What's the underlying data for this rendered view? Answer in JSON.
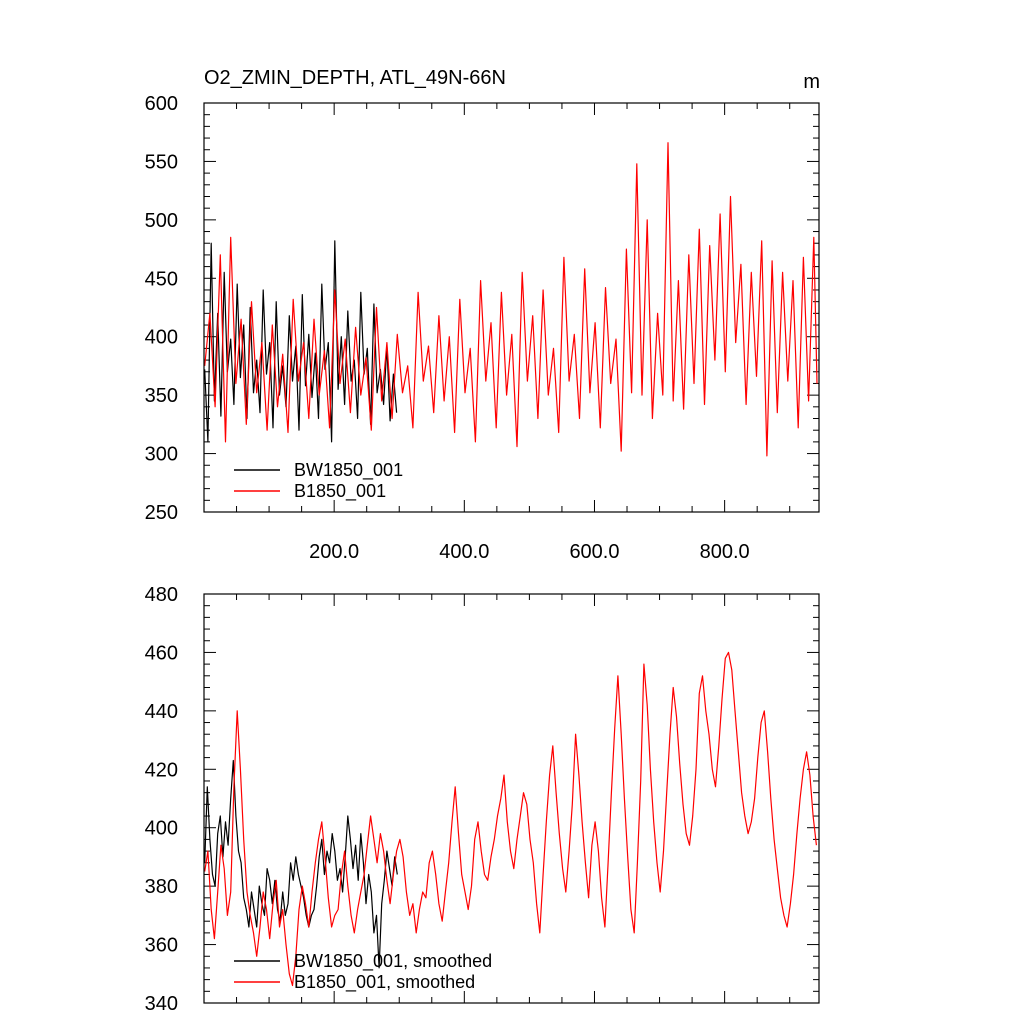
{
  "chart_data": [
    {
      "type": "line",
      "title": "O2_ZMIN_DEPTH, ATL_49N-66N",
      "units": "m",
      "xlabel": "",
      "ylabel": "",
      "xlim": [
        0,
        945
      ],
      "ylim": [
        250,
        600
      ],
      "x_ticks": [
        200,
        400,
        600,
        800
      ],
      "x_tick_labels": [
        "200.0",
        "400.0",
        "600.0",
        "800.0"
      ],
      "y_ticks": [
        250,
        300,
        350,
        400,
        450,
        500,
        550,
        600
      ],
      "y_tick_labels": [
        "250",
        "300",
        "350",
        "400",
        "450",
        "500",
        "550",
        "600"
      ],
      "legend_position": "bottom-left",
      "series": [
        {
          "name": "BW1850_001",
          "color": "#000000",
          "x": [
            1,
            6,
            11,
            16,
            21,
            26,
            31,
            36,
            41,
            46,
            51,
            56,
            61,
            66,
            71,
            76,
            81,
            86,
            91,
            96,
            101,
            106,
            111,
            116,
            121,
            126,
            131,
            136,
            141,
            146,
            151,
            156,
            161,
            166,
            171,
            176,
            181,
            186,
            191,
            196,
            201,
            206,
            211,
            216,
            221,
            226,
            231,
            236,
            241,
            246,
            251,
            256,
            261,
            266,
            271,
            276,
            281,
            286,
            291,
            296
          ],
          "values": [
            372,
            310,
            480,
            345,
            420,
            332,
            455,
            370,
            398,
            342,
            445,
            365,
            410,
            330,
            425,
            352,
            380,
            335,
            440,
            368,
            395,
            322,
            430,
            350,
            375,
            340,
            418,
            362,
            392,
            320,
            436,
            358,
            402,
            348,
            386,
            330,
            445,
            372,
            395,
            310,
            482,
            355,
            400,
            342,
            422,
            362,
            380,
            330,
            438,
            368,
            390,
            325,
            428,
            352,
            372,
            342,
            392,
            328,
            368,
            335
          ]
        },
        {
          "name": "B1850_001",
          "color": "#ff0000",
          "x": [
            1,
            9,
            17,
            25,
            33,
            41,
            49,
            57,
            65,
            73,
            81,
            89,
            97,
            105,
            113,
            121,
            129,
            137,
            145,
            153,
            161,
            169,
            177,
            185,
            193,
            201,
            209,
            217,
            225,
            233,
            241,
            249,
            257,
            265,
            273,
            281,
            289,
            297,
            305,
            313,
            321,
            329,
            337,
            345,
            353,
            361,
            369,
            377,
            385,
            393,
            401,
            409,
            417,
            425,
            433,
            441,
            449,
            457,
            465,
            473,
            481,
            489,
            497,
            505,
            513,
            521,
            529,
            537,
            545,
            553,
            561,
            569,
            577,
            585,
            593,
            601,
            609,
            617,
            625,
            633,
            641,
            649,
            657,
            665,
            673,
            681,
            689,
            697,
            705,
            713,
            721,
            729,
            737,
            745,
            753,
            761,
            769,
            777,
            785,
            793,
            801,
            809,
            817,
            825,
            833,
            841,
            849,
            857,
            865,
            873,
            881,
            889,
            897,
            905,
            913,
            921,
            929,
            937,
            942
          ],
          "values": [
            375,
            420,
            340,
            470,
            310,
            485,
            360,
            415,
            325,
            430,
            352,
            395,
            320,
            410,
            340,
            385,
            318,
            432,
            362,
            395,
            330,
            415,
            350,
            388,
            322,
            440,
            360,
            398,
            335,
            408,
            350,
            382,
            320,
            425,
            345,
            395,
            330,
            402,
            352,
            375,
            322,
            438,
            362,
            392,
            335,
            418,
            345,
            400,
            318,
            432,
            352,
            390,
            310,
            448,
            362,
            412,
            322,
            438,
            350,
            402,
            306,
            455,
            362,
            418,
            330,
            440,
            350,
            390,
            318,
            468,
            362,
            402,
            330,
            458,
            352,
            412,
            322,
            442,
            360,
            398,
            302,
            475,
            352,
            548,
            350,
            500,
            330,
            420,
            350,
            566,
            345,
            448,
            338,
            470,
            360,
            492,
            342,
            478,
            380,
            505,
            370,
            520,
            395,
            462,
            342,
            455,
            366,
            482,
            298,
            465,
            335,
            455,
            362,
            448,
            322,
            468,
            345,
            485,
            360
          ]
        }
      ]
    },
    {
      "type": "line",
      "title": "",
      "xlabel": "",
      "ylabel": "",
      "xlim": [
        0,
        945
      ],
      "ylim": [
        340,
        480
      ],
      "x_ticks": [
        200,
        400,
        600,
        800
      ],
      "x_tick_labels": [],
      "y_ticks": [
        340,
        360,
        380,
        400,
        420,
        440,
        460,
        480
      ],
      "y_tick_labels": [
        "340",
        "360",
        "380",
        "400",
        "420",
        "440",
        "460",
        "480"
      ],
      "legend_position": "bottom-left",
      "series": [
        {
          "name": "BW1850_001, smoothed",
          "color": "#000000",
          "x": [
            1,
            5,
            9,
            13,
            17,
            21,
            25,
            29,
            33,
            37,
            41,
            45,
            49,
            53,
            57,
            61,
            65,
            69,
            73,
            77,
            81,
            85,
            89,
            93,
            97,
            101,
            105,
            109,
            113,
            117,
            121,
            125,
            129,
            133,
            137,
            141,
            145,
            149,
            153,
            157,
            161,
            165,
            169,
            173,
            177,
            181,
            185,
            189,
            193,
            197,
            201,
            205,
            209,
            213,
            217,
            221,
            225,
            229,
            233,
            237,
            241,
            245,
            249,
            253,
            257,
            261,
            265,
            269,
            273,
            277,
            281,
            285,
            289,
            293,
            297
          ],
          "values": [
            388,
            414,
            396,
            384,
            380,
            398,
            404,
            390,
            402,
            394,
            410,
            423,
            404,
            392,
            388,
            376,
            372,
            366,
            378,
            372,
            366,
            380,
            374,
            370,
            386,
            382,
            374,
            382,
            372,
            368,
            378,
            370,
            374,
            388,
            382,
            390,
            384,
            380,
            376,
            370,
            366,
            370,
            372,
            380,
            390,
            396,
            384,
            392,
            388,
            398,
            392,
            382,
            386,
            378,
            390,
            404,
            396,
            386,
            394,
            382,
            398,
            388,
            374,
            384,
            378,
            364,
            370,
            352,
            374,
            382,
            392,
            386,
            380,
            390,
            384
          ]
        },
        {
          "name": "B1850_001, smoothed",
          "color": "#ff0000",
          "x": [
            1,
            6,
            11,
            16,
            21,
            26,
            31,
            36,
            41,
            46,
            51,
            56,
            61,
            66,
            71,
            76,
            81,
            86,
            91,
            96,
            101,
            106,
            111,
            116,
            121,
            126,
            131,
            136,
            141,
            146,
            151,
            156,
            161,
            166,
            171,
            176,
            181,
            186,
            191,
            196,
            201,
            206,
            211,
            216,
            221,
            226,
            231,
            236,
            241,
            246,
            251,
            256,
            261,
            266,
            271,
            276,
            281,
            286,
            291,
            296,
            301,
            306,
            311,
            316,
            321,
            326,
            331,
            336,
            341,
            346,
            351,
            356,
            361,
            366,
            371,
            376,
            381,
            386,
            391,
            396,
            401,
            406,
            411,
            416,
            421,
            426,
            431,
            436,
            441,
            446,
            451,
            456,
            461,
            466,
            471,
            476,
            481,
            486,
            491,
            496,
            501,
            506,
            511,
            516,
            521,
            526,
            531,
            536,
            541,
            546,
            551,
            556,
            561,
            566,
            571,
            576,
            581,
            586,
            591,
            596,
            601,
            606,
            611,
            616,
            621,
            626,
            631,
            636,
            641,
            646,
            651,
            656,
            661,
            666,
            671,
            676,
            681,
            686,
            691,
            696,
            701,
            706,
            711,
            716,
            721,
            726,
            731,
            736,
            741,
            746,
            751,
            756,
            761,
            766,
            771,
            776,
            781,
            786,
            791,
            796,
            801,
            806,
            811,
            816,
            821,
            826,
            831,
            836,
            841,
            846,
            851,
            856,
            861,
            866,
            871,
            876,
            881,
            886,
            891,
            896,
            901,
            906,
            911,
            916,
            921,
            926,
            931,
            936,
            941
          ],
          "values": [
            385,
            392,
            372,
            362,
            378,
            394,
            386,
            370,
            378,
            414,
            440,
            420,
            396,
            378,
            370,
            364,
            356,
            366,
            378,
            372,
            362,
            374,
            382,
            366,
            372,
            360,
            350,
            346,
            356,
            372,
            380,
            374,
            366,
            378,
            388,
            396,
            402,
            390,
            376,
            366,
            370,
            372,
            384,
            392,
            380,
            370,
            364,
            372,
            378,
            384,
            394,
            404,
            396,
            388,
            398,
            392,
            382,
            374,
            384,
            392,
            396,
            390,
            378,
            370,
            374,
            364,
            372,
            378,
            376,
            388,
            392,
            384,
            374,
            368,
            378,
            388,
            402,
            414,
            398,
            384,
            378,
            372,
            380,
            396,
            402,
            392,
            384,
            382,
            390,
            396,
            404,
            410,
            418,
            402,
            392,
            386,
            396,
            404,
            412,
            408,
            396,
            388,
            374,
            364,
            384,
            402,
            418,
            428,
            412,
            398,
            386,
            378,
            392,
            408,
            432,
            418,
            402,
            388,
            376,
            394,
            402,
            392,
            376,
            366,
            388,
            412,
            434,
            452,
            432,
            410,
            390,
            372,
            364,
            388,
            416,
            456,
            442,
            420,
            402,
            388,
            378,
            392,
            412,
            432,
            448,
            438,
            422,
            408,
            398,
            394,
            404,
            420,
            446,
            452,
            440,
            432,
            420,
            414,
            428,
            444,
            458,
            460,
            454,
            440,
            426,
            412,
            404,
            398,
            402,
            410,
            424,
            436,
            440,
            426,
            410,
            396,
            386,
            376,
            370,
            366,
            374,
            384,
            398,
            410,
            420,
            426,
            418,
            404,
            394
          ]
        }
      ]
    }
  ]
}
